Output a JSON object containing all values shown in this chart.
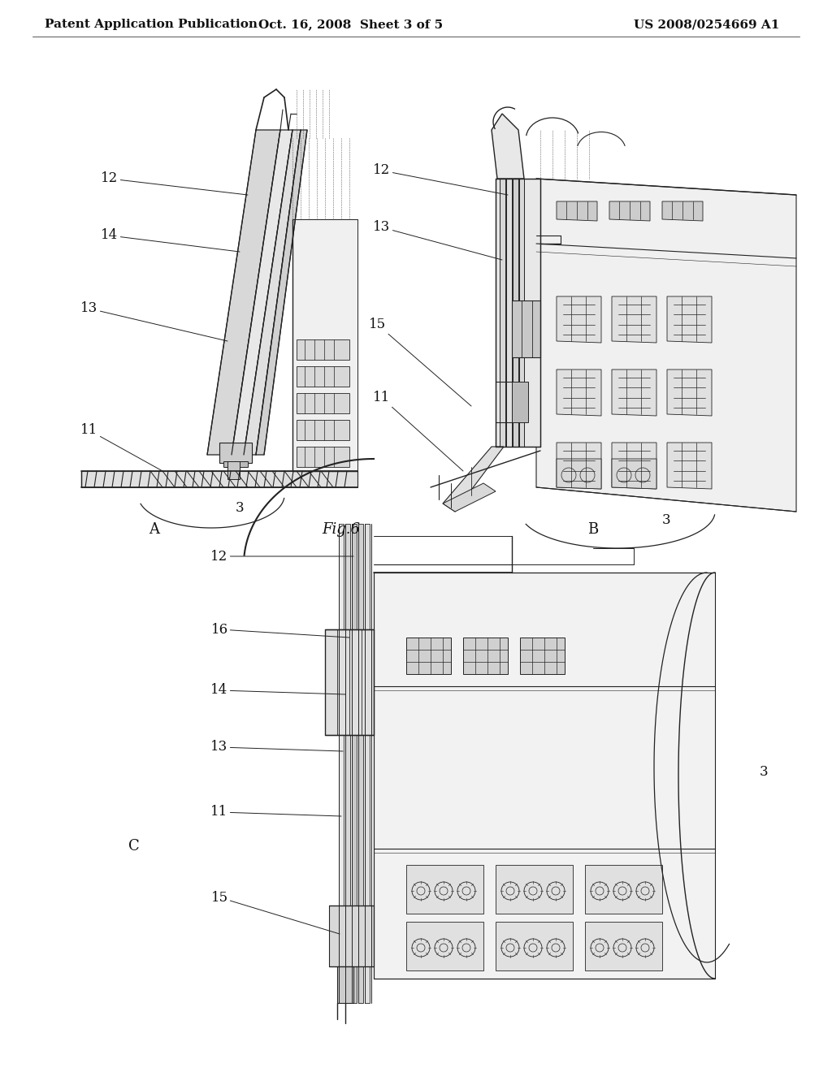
{
  "background_color": "#ffffff",
  "header_left": "Patent Application Publication",
  "header_center": "Oct. 16, 2008  Sheet 3 of 5",
  "header_right": "US 2008/0254669 A1",
  "fig_label": "Fig.6",
  "subfig_a_label": "A",
  "subfig_b_label": "B",
  "subfig_c_label": "C",
  "text_color": "#111111",
  "line_color": "#222222",
  "draw_color": "#333333",
  "header_fontsize": 11,
  "ref_fontsize": 12
}
